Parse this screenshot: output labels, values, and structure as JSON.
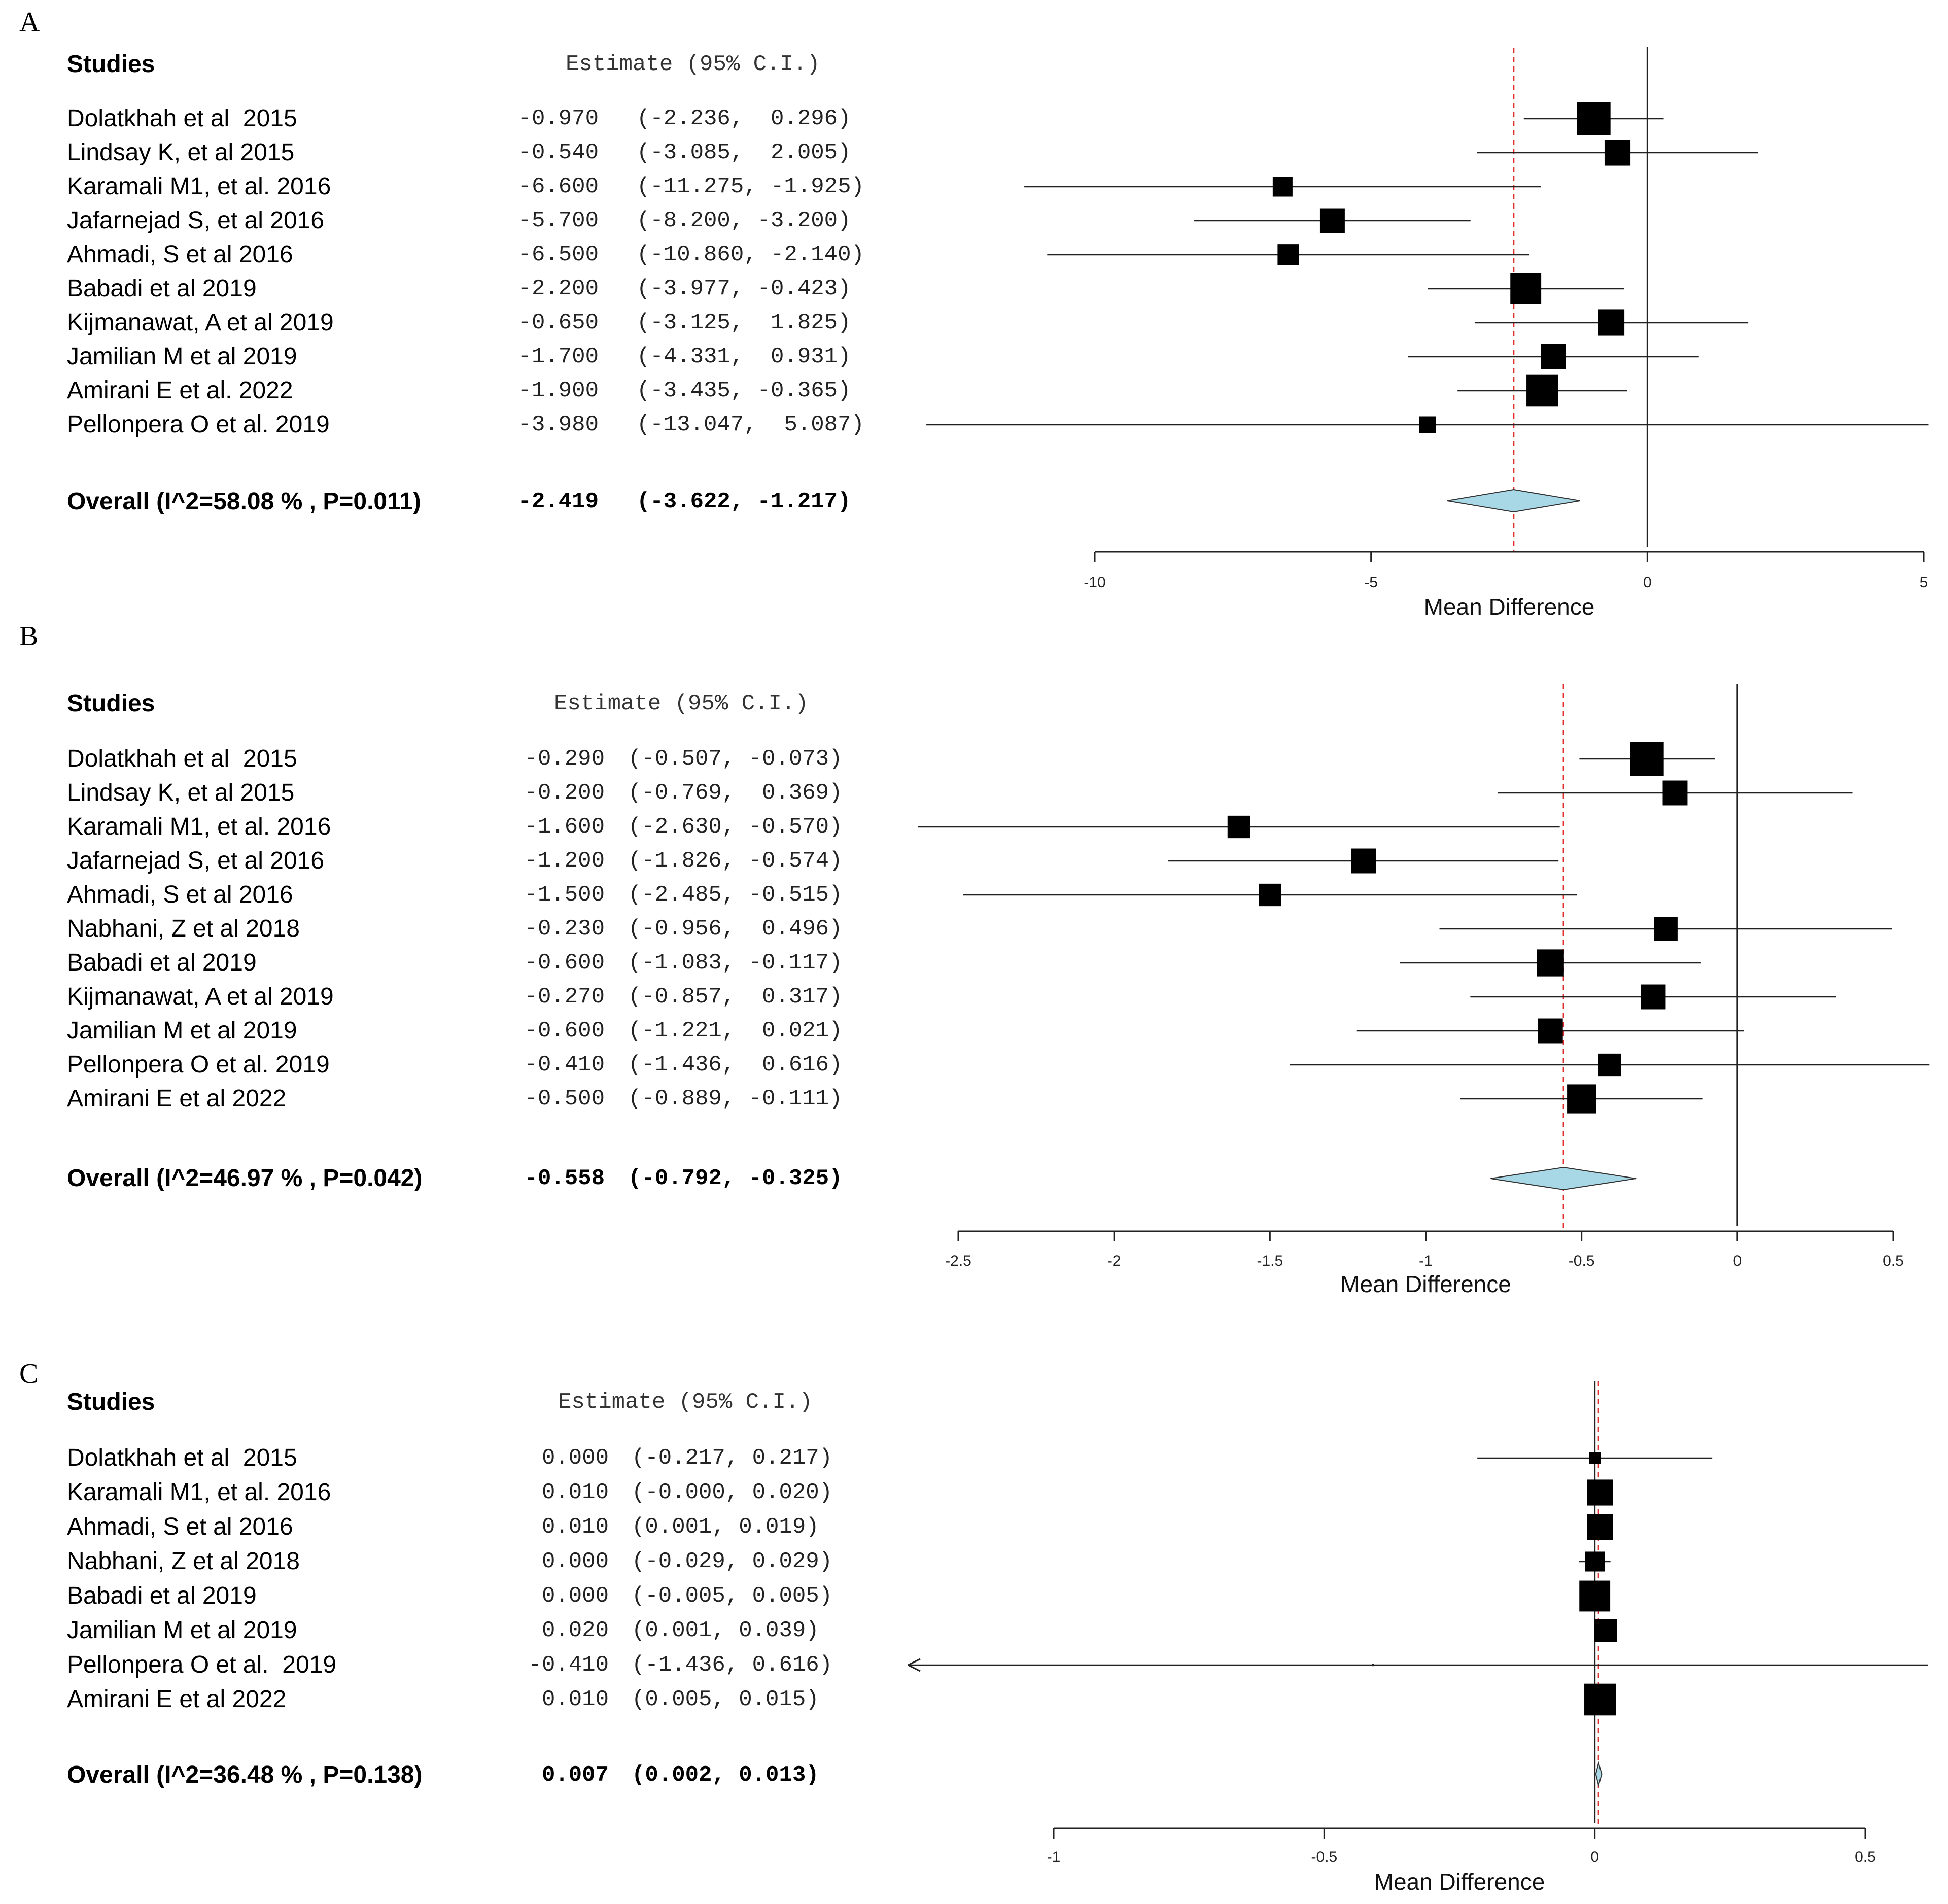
{
  "header_labels": {
    "studies": "Studies",
    "estimate": "Estimate (95% C.I.)"
  },
  "colors": {
    "overall_diamond": "#a8d8e6",
    "ref_line": "#e03030"
  },
  "chart_data": [
    {
      "panel": "A",
      "type": "forest",
      "xlabel": "Mean Difference",
      "xlim": [
        -10,
        5
      ],
      "ticks": [
        -10,
        -5,
        0,
        5
      ],
      "tick_labels": [
        "-10",
        "-5",
        "0",
        "5"
      ],
      "studies": [
        {
          "name": "Dolatkhah et al  2015",
          "est": -0.97,
          "lo": -2.236,
          "hi": 0.296,
          "est_text": "-0.970",
          "ci_text": "(-2.236,  0.296)",
          "w": 1.0
        },
        {
          "name": "Lindsay K, et al 2015",
          "est": -0.54,
          "lo": -3.085,
          "hi": 2.005,
          "est_text": "-0.540",
          "ci_text": "(-3.085,  2.005)",
          "w": 0.6
        },
        {
          "name": "Karamali M1, et al. 2016",
          "est": -6.6,
          "lo": -11.275,
          "hi": -1.925,
          "est_text": "-6.600",
          "ci_text": "(-11.275, -1.925)",
          "w": 0.35
        },
        {
          "name": "Jafarnejad S, et al 2016",
          "est": -5.7,
          "lo": -8.2,
          "hi": -3.2,
          "est_text": "-5.700",
          "ci_text": "(-8.200, -3.200)",
          "w": 0.55
        },
        {
          "name": "Ahmadi, S et al 2016",
          "est": -6.5,
          "lo": -10.86,
          "hi": -2.14,
          "est_text": "-6.500",
          "ci_text": "(-10.860, -2.140)",
          "w": 0.4
        },
        {
          "name": "Babadi et al 2019",
          "est": -2.2,
          "lo": -3.977,
          "hi": -0.423,
          "est_text": "-2.200",
          "ci_text": "(-3.977, -0.423)",
          "w": 0.85
        },
        {
          "name": "Kijmanawat, A et al 2019",
          "est": -0.65,
          "lo": -3.125,
          "hi": 1.825,
          "est_text": "-0.650",
          "ci_text": "(-3.125,  1.825)",
          "w": 0.6
        },
        {
          "name": "Jamilian M et al 2019",
          "est": -1.7,
          "lo": -4.331,
          "hi": 0.931,
          "est_text": "-1.700",
          "ci_text": "(-4.331,  0.931)",
          "w": 0.55
        },
        {
          "name": "Amirani E et al. 2022",
          "est": -1.9,
          "lo": -3.435,
          "hi": -0.365,
          "est_text": "-1.900",
          "ci_text": "(-3.435, -0.365)",
          "w": 0.9
        },
        {
          "name": "Pellonpera O et al. 2019",
          "est": -3.98,
          "lo": -13.047,
          "hi": 5.087,
          "est_text": "-3.980",
          "ci_text": "(-13.047,  5.087)",
          "w": 0.25
        }
      ],
      "overall": {
        "label": "Overall (I^2=58.08 % , P=0.011)",
        "est": -2.419,
        "lo": -3.622,
        "hi": -1.217,
        "est_text": "-2.419",
        "ci_text": "(-3.622, -1.217)"
      }
    },
    {
      "panel": "B",
      "type": "forest",
      "xlabel": "Mean Difference",
      "xlim": [
        -2.5,
        0.5
      ],
      "ticks": [
        -2.5,
        -2,
        -1.5,
        -1,
        -0.5,
        0,
        0.5
      ],
      "tick_labels": [
        "-2.5",
        "-2",
        "-1.5",
        "-1",
        "-0.5",
        "0",
        "0.5"
      ],
      "studies": [
        {
          "name": "Dolatkhah et al  2015",
          "est": -0.29,
          "lo": -0.507,
          "hi": -0.073,
          "est_text": "-0.290",
          "ci_text": "(-0.507, -0.073)",
          "w": 1.0
        },
        {
          "name": "Lindsay K, et al 2015",
          "est": -0.2,
          "lo": -0.769,
          "hi": 0.369,
          "est_text": "-0.200",
          "ci_text": "(-0.769,  0.369)",
          "w": 0.55
        },
        {
          "name": "Karamali M1, et al. 2016",
          "est": -1.6,
          "lo": -2.63,
          "hi": -0.57,
          "est_text": "-1.600",
          "ci_text": "(-2.630, -0.570)",
          "w": 0.45
        },
        {
          "name": "Jafarnejad S, et al 2016",
          "est": -1.2,
          "lo": -1.826,
          "hi": -0.574,
          "est_text": "-1.200",
          "ci_text": "(-1.826, -0.574)",
          "w": 0.55
        },
        {
          "name": "Ahmadi, S et al 2016",
          "est": -1.5,
          "lo": -2.485,
          "hi": -0.515,
          "est_text": "-1.500",
          "ci_text": "(-2.485, -0.515)",
          "w": 0.45
        },
        {
          "name": "Nabhani, Z et al 2018",
          "est": -0.23,
          "lo": -0.956,
          "hi": 0.496,
          "est_text": "-0.230",
          "ci_text": "(-0.956,  0.496)",
          "w": 0.5
        },
        {
          "name": "Babadi et al 2019",
          "est": -0.6,
          "lo": -1.083,
          "hi": -0.117,
          "est_text": "-0.600",
          "ci_text": "(-1.083, -0.117)",
          "w": 0.65
        },
        {
          "name": "Kijmanawat, A et al 2019",
          "est": -0.27,
          "lo": -0.857,
          "hi": 0.317,
          "est_text": "-0.270",
          "ci_text": "(-0.857,  0.317)",
          "w": 0.55
        },
        {
          "name": "Jamilian M et al 2019",
          "est": -0.6,
          "lo": -1.221,
          "hi": 0.021,
          "est_text": "-0.600",
          "ci_text": "(-1.221,  0.021)",
          "w": 0.55
        },
        {
          "name": "Pellonpera O et al. 2019",
          "est": -0.41,
          "lo": -1.436,
          "hi": 0.616,
          "est_text": "-0.410",
          "ci_text": "(-1.436,  0.616)",
          "w": 0.45
        },
        {
          "name": "Amirani E et al 2022",
          "est": -0.5,
          "lo": -0.889,
          "hi": -0.111,
          "est_text": "-0.500",
          "ci_text": "(-0.889, -0.111)",
          "w": 0.75
        }
      ],
      "overall": {
        "label": "Overall (I^2=46.97 % , P=0.042)",
        "est": -0.558,
        "lo": -0.792,
        "hi": -0.325,
        "est_text": "-0.558",
        "ci_text": "(-0.792, -0.325)"
      }
    },
    {
      "panel": "C",
      "type": "forest",
      "xlabel": "Mean Difference",
      "xlim": [
        -1,
        0.5
      ],
      "ticks": [
        -1,
        -0.5,
        0,
        0.5
      ],
      "tick_labels": [
        "-1",
        "-0.5",
        "0",
        "0.5"
      ],
      "studies": [
        {
          "name": "Dolatkhah et al  2015",
          "est": 0.0,
          "lo": -0.217,
          "hi": 0.217,
          "est_text": "0.000",
          "ci_text": "(-0.217, 0.217)",
          "w": 0.12
        },
        {
          "name": "Karamali M1, et al. 2016",
          "est": 0.01,
          "lo": -0.0,
          "hi": 0.02,
          "est_text": "0.010",
          "ci_text": "(-0.000, 0.020)",
          "w": 0.6
        },
        {
          "name": "Ahmadi, S et al 2016",
          "est": 0.01,
          "lo": 0.001,
          "hi": 0.019,
          "est_text": "0.010",
          "ci_text": "(0.001, 0.019)",
          "w": 0.6
        },
        {
          "name": "Nabhani, Z et al 2018",
          "est": 0.0,
          "lo": -0.029,
          "hi": 0.029,
          "est_text": "0.000",
          "ci_text": "(-0.029, 0.029)",
          "w": 0.35
        },
        {
          "name": "Babadi et al 2019",
          "est": 0.0,
          "lo": -0.005,
          "hi": 0.005,
          "est_text": "0.000",
          "ci_text": "(-0.005, 0.005)",
          "w": 0.85
        },
        {
          "name": "Jamilian M et al 2019",
          "est": 0.02,
          "lo": 0.001,
          "hi": 0.039,
          "est_text": "0.020",
          "ci_text": "(0.001, 0.039)",
          "w": 0.45
        },
        {
          "name": "Pellonpera O et al.  2019",
          "est": -0.41,
          "lo": -1.436,
          "hi": 0.616,
          "est_text": "-0.410",
          "ci_text": "(-1.436, 0.616)",
          "w": 0.0
        },
        {
          "name": "Amirani E et al 2022",
          "est": 0.01,
          "lo": 0.005,
          "hi": 0.015,
          "est_text": "0.010",
          "ci_text": "(0.005, 0.015)",
          "w": 0.9
        }
      ],
      "overall": {
        "label": "Overall (I^2=36.48 % , P=0.138)",
        "est": 0.007,
        "lo": 0.002,
        "hi": 0.013,
        "est_text": "0.007",
        "ci_text": "(0.002, 0.013)"
      }
    }
  ]
}
